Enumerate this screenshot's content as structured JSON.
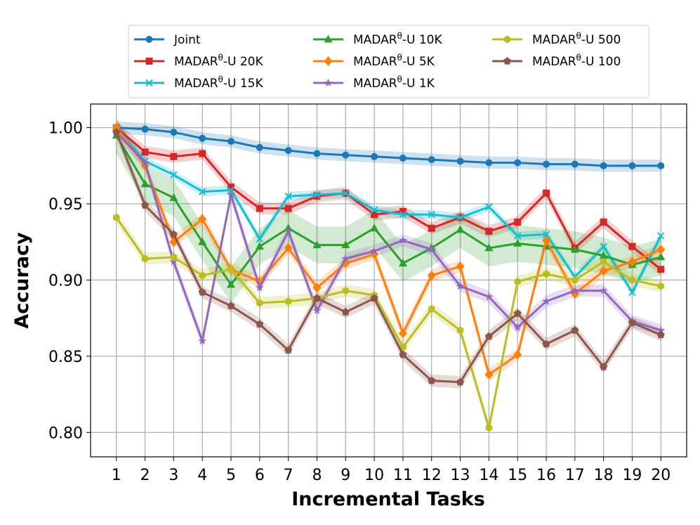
{
  "chart_data": {
    "type": "line",
    "title": "",
    "xlabel": "Incremental Tasks",
    "ylabel": "Accuracy",
    "x": [
      1,
      2,
      3,
      4,
      5,
      6,
      7,
      8,
      9,
      10,
      11,
      12,
      13,
      14,
      15,
      16,
      17,
      18,
      19,
      20
    ],
    "xticks": [
      "1",
      "2",
      "3",
      "4",
      "5",
      "6",
      "7",
      "8",
      "9",
      "10",
      "11",
      "12",
      "13",
      "14",
      "15",
      "16",
      "17",
      "18",
      "19",
      "20"
    ],
    "xlim": [
      0.1,
      20.9
    ],
    "ylim": [
      0.784,
      1.0155
    ],
    "yticks": [
      0.8,
      0.85,
      0.9,
      0.95,
      1.0
    ],
    "ytick_labels": [
      "0.80",
      "0.85",
      "0.90",
      "0.95",
      "1.00"
    ],
    "grid": true,
    "legend_position": "top-center",
    "series": [
      {
        "name": "Joint",
        "name_base": "Joint",
        "name_sup": "",
        "name_suffix": "",
        "color": "#1f77b4",
        "marker": "circle",
        "band": 0.004,
        "values": [
          1.0,
          0.999,
          0.997,
          0.993,
          0.991,
          0.987,
          0.985,
          0.983,
          0.982,
          0.981,
          0.98,
          0.979,
          0.978,
          0.977,
          0.977,
          0.976,
          0.976,
          0.975,
          0.975,
          0.975
        ]
      },
      {
        "name": "MADARθ-U 20K",
        "name_base": "MADAR",
        "name_sup": "θ",
        "name_suffix": "-U 20K",
        "color": "#d62728",
        "marker": "square",
        "band": 0.004,
        "values": [
          1.0,
          0.984,
          0.981,
          0.983,
          0.961,
          0.947,
          0.947,
          0.955,
          0.957,
          0.943,
          0.945,
          0.934,
          0.941,
          0.932,
          0.938,
          0.957,
          0.921,
          0.938,
          0.922,
          0.907
        ]
      },
      {
        "name": "MADARθ-U 15K",
        "name_base": "MADAR",
        "name_sup": "θ",
        "name_suffix": "-U 15K",
        "color": "#17becf",
        "marker": "x",
        "band": 0.003,
        "values": [
          1.0,
          0.978,
          0.969,
          0.958,
          0.959,
          0.927,
          0.955,
          0.956,
          0.957,
          0.946,
          0.943,
          0.943,
          0.941,
          0.948,
          0.929,
          0.93,
          0.902,
          0.922,
          0.892,
          0.929
        ]
      },
      {
        "name": "MADARθ-U 10K",
        "name_base": "MADAR",
        "name_sup": "θ",
        "name_suffix": "-U 10K",
        "color": "#2ca02c",
        "marker": "triangle",
        "band": 0.012,
        "values": [
          0.995,
          0.963,
          0.954,
          0.925,
          0.897,
          0.922,
          0.934,
          0.923,
          0.923,
          0.934,
          0.911,
          0.921,
          0.933,
          0.921,
          0.924,
          0.922,
          0.92,
          0.916,
          0.91,
          0.915
        ]
      },
      {
        "name": "MADARθ-U 5K",
        "name_base": "MADAR",
        "name_sup": "θ",
        "name_suffix": "-U 5K",
        "color": "#ff7f0e",
        "marker": "diamond",
        "band": 0.004,
        "values": [
          1.0,
          0.975,
          0.925,
          0.94,
          0.907,
          0.899,
          0.921,
          0.895,
          0.911,
          0.917,
          0.865,
          0.903,
          0.909,
          0.838,
          0.851,
          0.926,
          0.891,
          0.906,
          0.912,
          0.92
        ]
      },
      {
        "name": "MADARθ-U 1K",
        "name_base": "MADAR",
        "name_sup": "θ",
        "name_suffix": "-U 1K",
        "color": "#9467bd",
        "marker": "star",
        "band": 0.004,
        "values": [
          0.997,
          0.977,
          0.912,
          0.86,
          0.956,
          0.895,
          0.932,
          0.88,
          0.914,
          0.919,
          0.926,
          0.92,
          0.896,
          0.889,
          0.869,
          0.886,
          0.893,
          0.893,
          0.873,
          0.867
        ]
      },
      {
        "name": "MADARθ-U 500",
        "name_base": "MADAR",
        "name_sup": "θ",
        "name_suffix": "-U 500",
        "color": "#bcbd22",
        "marker": "hexagon",
        "band": 0.004,
        "values": [
          0.941,
          0.914,
          0.915,
          0.903,
          0.907,
          0.885,
          0.886,
          0.888,
          0.893,
          0.89,
          0.856,
          0.881,
          0.867,
          0.803,
          0.899,
          0.904,
          0.9,
          0.912,
          0.9,
          0.896
        ]
      },
      {
        "name": "MADARθ-U 100",
        "name_base": "MADAR",
        "name_sup": "θ",
        "name_suffix": "-U 100",
        "color": "#8c564b",
        "marker": "pentagon",
        "band": 0.004,
        "values": [
          0.997,
          0.949,
          0.93,
          0.892,
          0.883,
          0.871,
          0.854,
          0.888,
          0.879,
          0.888,
          0.851,
          0.834,
          0.833,
          0.863,
          0.878,
          0.858,
          0.867,
          0.843,
          0.872,
          0.864
        ]
      }
    ]
  }
}
